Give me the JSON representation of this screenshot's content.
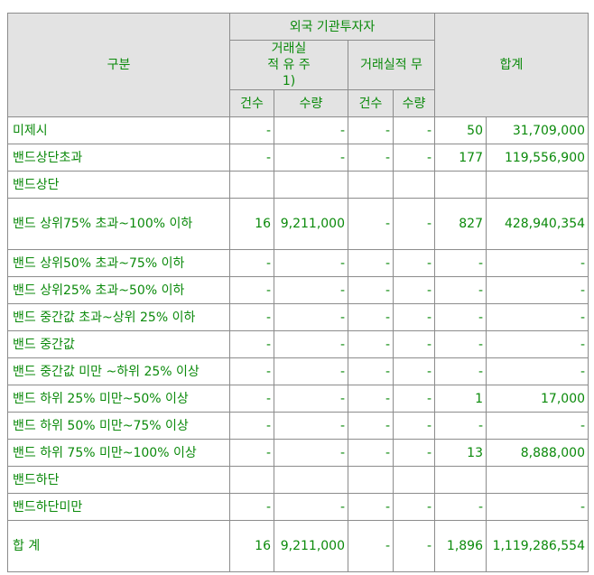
{
  "header": {
    "category": "구분",
    "foreign_group": "외국 기관투자자",
    "with_record": "거래실적 유 주1)",
    "without_record": "거래실적 무",
    "total": "합계",
    "count": "건수",
    "quantity": "수량"
  },
  "rows": [
    {
      "label": "미제시",
      "c1": "-",
      "q1": "-",
      "c2": "-",
      "q2": "-",
      "c3": "50",
      "q3": "31,709,000"
    },
    {
      "label": "밴드상단초과",
      "c1": "-",
      "q1": "-",
      "c2": "-",
      "q2": "-",
      "c3": "177",
      "q3": "119,556,900"
    },
    {
      "label": "밴드상단",
      "c1": "",
      "q1": "",
      "c2": "",
      "q2": "",
      "c3": "",
      "q3": ""
    },
    {
      "label": "밴드 상위75% 초과~100% 이하",
      "c1": "16",
      "q1": "9,211,000",
      "c2": "-",
      "q2": "-",
      "c3": "827",
      "q3": "428,940,354"
    },
    {
      "label": "밴드 상위50% 초과~75% 이하",
      "c1": "-",
      "q1": "-",
      "c2": "-",
      "q2": "-",
      "c3": "-",
      "q3": "-"
    },
    {
      "label": "밴드 상위25% 초과~50% 이하",
      "c1": "-",
      "q1": "-",
      "c2": "-",
      "q2": "-",
      "c3": "-",
      "q3": "-"
    },
    {
      "label": "밴드 중간값 초과~상위 25% 이하",
      "c1": "-",
      "q1": "-",
      "c2": "-",
      "q2": "-",
      "c3": "-",
      "q3": "-"
    },
    {
      "label": "밴드 중간값",
      "c1": "-",
      "q1": "-",
      "c2": "-",
      "q2": "-",
      "c3": "-",
      "q3": "-"
    },
    {
      "label": "밴드 중간값 미만 ~하위 25% 이상",
      "c1": "-",
      "q1": "-",
      "c2": "-",
      "q2": "-",
      "c3": "-",
      "q3": "-"
    },
    {
      "label": "밴드 하위 25% 미만~50% 이상",
      "c1": "-",
      "q1": "-",
      "c2": "-",
      "q2": "-",
      "c3": "1",
      "q3": "17,000"
    },
    {
      "label": "밴드 하위 50% 미만~75% 이상",
      "c1": "-",
      "q1": "-",
      "c2": "-",
      "q2": "-",
      "c3": "-",
      "q3": "-"
    },
    {
      "label": "밴드 하위 75% 미만~100% 이상",
      "c1": "-",
      "q1": "-",
      "c2": "-",
      "q2": "-",
      "c3": "13",
      "q3": "8,888,000"
    },
    {
      "label": "밴드하단",
      "c1": "",
      "q1": "",
      "c2": "",
      "q2": "",
      "c3": "",
      "q3": ""
    },
    {
      "label": "밴드하단미만",
      "c1": "-",
      "q1": "-",
      "c2": "-",
      "q2": "-",
      "c3": "-",
      "q3": "-"
    },
    {
      "label": "합 계",
      "c1": "16",
      "q1": "9,211,000",
      "c2": "-",
      "q2": "-",
      "c3": "1,896",
      "q3": "1,119,286,554"
    }
  ],
  "colors": {
    "text": "#0b8a0b",
    "header_bg": "#e3e3e3",
    "border": "#8c8c8c"
  }
}
